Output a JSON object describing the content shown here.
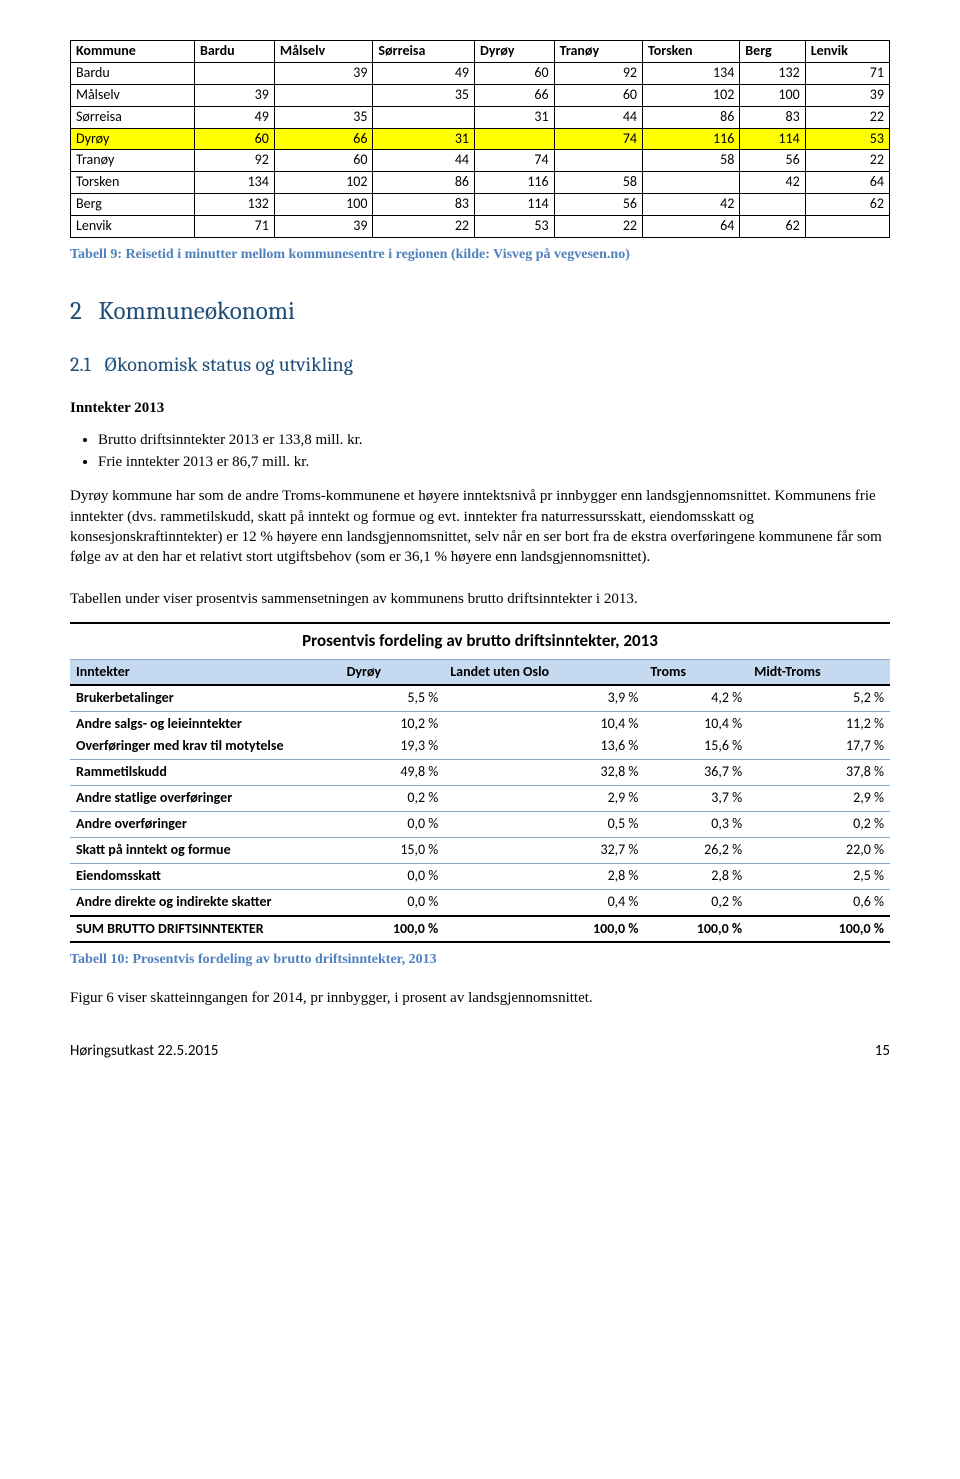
{
  "travel": {
    "header": [
      "Kommune",
      "Bardu",
      "Målselv",
      "Sørreisa",
      "Dyrøy",
      "Tranøy",
      "Torsken",
      "Berg",
      "Lenvik"
    ],
    "rows": [
      {
        "name": "Bardu",
        "cells": [
          "",
          "39",
          "49",
          "60",
          "92",
          "134",
          "132",
          "71"
        ],
        "hl": false
      },
      {
        "name": "Målselv",
        "cells": [
          "39",
          "",
          "35",
          "66",
          "60",
          "102",
          "100",
          "39"
        ],
        "hl": false
      },
      {
        "name": "Sørreisa",
        "cells": [
          "49",
          "35",
          "",
          "31",
          "44",
          "86",
          "83",
          "22"
        ],
        "hl": false
      },
      {
        "name": "Dyrøy",
        "cells": [
          "60",
          "66",
          "31",
          "",
          "74",
          "116",
          "114",
          "53"
        ],
        "hl": true
      },
      {
        "name": "Tranøy",
        "cells": [
          "92",
          "60",
          "44",
          "74",
          "",
          "58",
          "56",
          "22"
        ],
        "hl": false
      },
      {
        "name": "Torsken",
        "cells": [
          "134",
          "102",
          "86",
          "116",
          "58",
          "",
          "42",
          "64"
        ],
        "hl": false
      },
      {
        "name": "Berg",
        "cells": [
          "132",
          "100",
          "83",
          "114",
          "56",
          "42",
          "",
          "62"
        ],
        "hl": false
      },
      {
        "name": "Lenvik",
        "cells": [
          "71",
          "39",
          "22",
          "53",
          "22",
          "64",
          "62",
          ""
        ],
        "hl": false
      }
    ],
    "caption": "Tabell 9: Reisetid i minutter mellom kommunesentre i regionen (kilde: Visveg på vegvesen.no)"
  },
  "section": {
    "num": "2",
    "title": "Kommuneøkonomi"
  },
  "subsection": {
    "num": "2.1",
    "title": "Økonomisk status og utvikling"
  },
  "inntekter": {
    "heading": "Inntekter 2013",
    "bullets": [
      "Brutto driftsinntekter 2013 er 133,8 mill. kr.",
      "Frie inntekter 2013 er 86,7 mill. kr."
    ],
    "para1": "Dyrøy kommune har som de andre Troms-kommunene et høyere inntektsnivå pr innbygger enn landsgjennomsnittet. Kommunens frie inntekter (dvs. rammetilskudd, skatt på inntekt og formue og evt. inntekter fra naturressursskatt, eiendomsskatt og konsesjonskraftinntekter) er 12 % høyere enn landsgjennomsnittet, selv når en ser bort fra de ekstra overføringene kommunene får som følge av at den har et relativt stort utgiftsbehov (som er 36,1 % høyere enn landsgjennomsnittet).",
    "para2": "Tabellen under viser prosentvis sammensetningen av kommunens brutto driftsinntekter i 2013."
  },
  "pct": {
    "title": "Prosentvis fordeling av brutto driftsinntekter, 2013",
    "columns": [
      "Inntekter",
      "Dyrøy",
      "Landet uten Oslo",
      "Troms",
      "Midt-Troms"
    ],
    "rows": [
      {
        "label": "Brukerbetalinger",
        "v": [
          "5,5 %",
          "3,9 %",
          "4,2 %",
          "5,2 %"
        ],
        "tight": false
      },
      {
        "label": "Andre salgs- og leieinntekter",
        "v": [
          "10,2 %",
          "10,4 %",
          "10,4 %",
          "11,2 %"
        ],
        "tight": true
      },
      {
        "label": "Overføringer med krav til motytelse",
        "v": [
          "19,3 %",
          "13,6 %",
          "15,6 %",
          "17,7 %"
        ],
        "tight": false
      },
      {
        "label": "Rammetilskudd",
        "v": [
          "49,8 %",
          "32,8 %",
          "36,7 %",
          "37,8 %"
        ],
        "tight": false
      },
      {
        "label": "Andre statlige overføringer",
        "v": [
          "0,2 %",
          "2,9 %",
          "3,7 %",
          "2,9 %"
        ],
        "tight": false
      },
      {
        "label": "Andre overføringer",
        "v": [
          "0,0 %",
          "0,5 %",
          "0,3 %",
          "0,2 %"
        ],
        "tight": false
      },
      {
        "label": "Skatt på inntekt og formue",
        "v": [
          "15,0 %",
          "32,7 %",
          "26,2 %",
          "22,0 %"
        ],
        "tight": false
      },
      {
        "label": "Eiendomsskatt",
        "v": [
          "0,0 %",
          "2,8 %",
          "2,8 %",
          "2,5 %"
        ],
        "tight": false
      },
      {
        "label": "Andre direkte og indirekte skatter",
        "v": [
          "0,0 %",
          "0,4 %",
          "0,2 %",
          "0,6 %"
        ],
        "tight": false
      }
    ],
    "sum": {
      "label": "SUM BRUTTO DRIFTSINNTEKTER",
      "v": [
        "100,0 %",
        "100,0 %",
        "100,0 %",
        "100,0 %"
      ]
    },
    "caption": "Tabell 10: Prosentvis fordeling av brutto driftsinntekter, 2013"
  },
  "fig6": "Figur 6 viser skatteinngangen for 2014, pr innbygger, i prosent av landsgjennomsnittet.",
  "footer": {
    "left": "Høringsutkast 22.5.2015",
    "page": "15"
  }
}
